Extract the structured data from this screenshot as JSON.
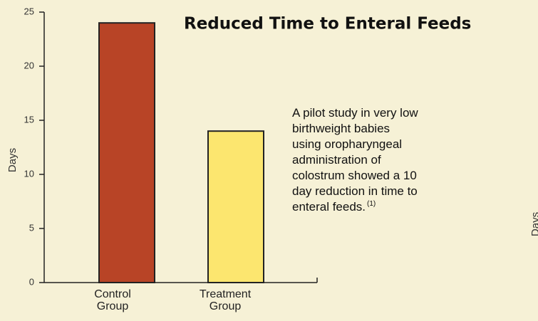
{
  "chart_data": {
    "type": "bar",
    "title": "Reduced Time to Enteral Feeds",
    "y_label": "Days",
    "categories": [
      "Control Group",
      "Treatment Group"
    ],
    "values": [
      24,
      14
    ],
    "colors": [
      "#b84426",
      "#fce66f"
    ],
    "ylim": [
      0,
      25
    ],
    "yticks": [
      0,
      5,
      10,
      15,
      20,
      25
    ],
    "annotation": {
      "lines": [
        "A pilot study in very low",
        "birthweight babies",
        "using oropharyngeal",
        "administration of",
        "colostrum showed a 10",
        "day reduction in time to",
        "enteral feeds."
      ],
      "superscript": "(1)"
    },
    "cropped_axis_label": "Days"
  }
}
